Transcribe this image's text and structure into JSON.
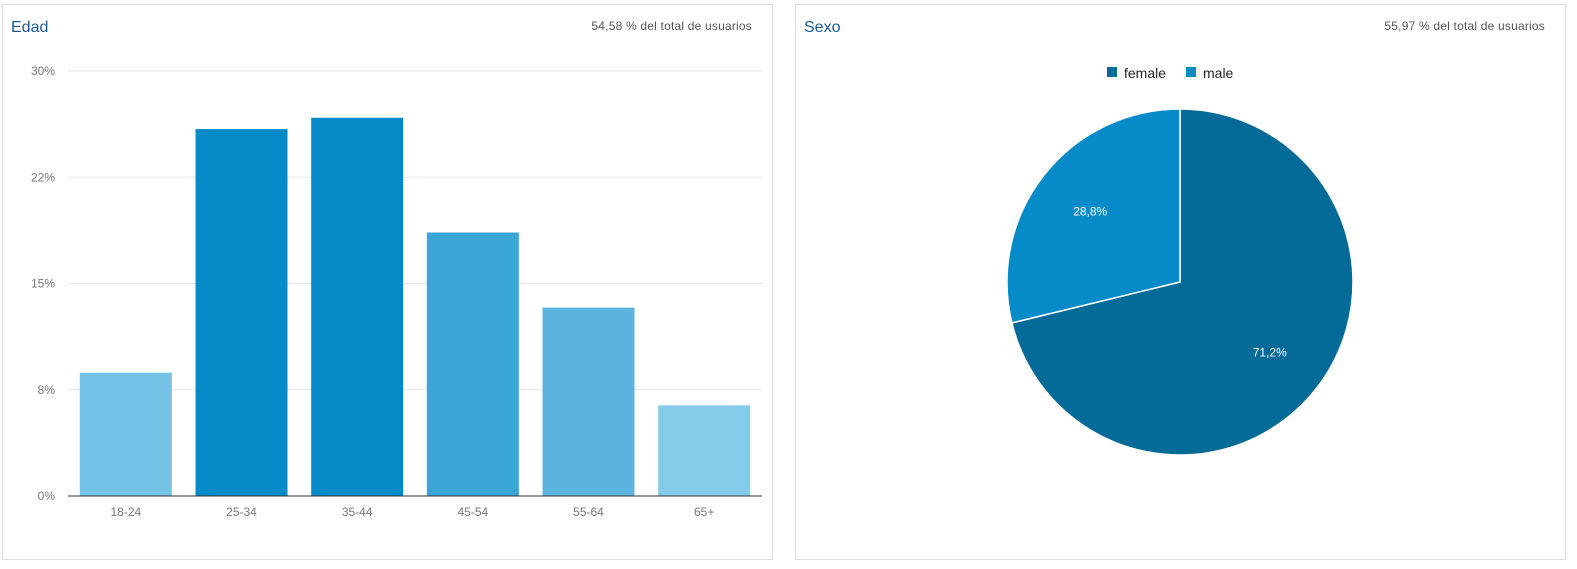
{
  "cards": {
    "age": {
      "title": "Edad",
      "share": "54,58 % del total de usuarios"
    },
    "sex": {
      "title": "Sexo",
      "share": "55,97 % del total de usuarios"
    }
  },
  "chart_data": [
    {
      "type": "bar",
      "title": "Edad",
      "categories": [
        "18-24",
        "25-34",
        "35-44",
        "45-54",
        "55-64",
        "65+"
      ],
      "values": [
        8.7,
        25.9,
        26.7,
        18.6,
        13.3,
        6.4
      ],
      "colors": [
        "#74c2e6",
        "#078bc8",
        "#058ac7",
        "#3aa6d6",
        "#5bb4de",
        "#86cbe9"
      ],
      "ylim": [
        0,
        30
      ],
      "yticks": [
        {
          "value": 0,
          "label": "0%"
        },
        {
          "value": 7.5,
          "label": "8%"
        },
        {
          "value": 15,
          "label": "15%"
        },
        {
          "value": 22.5,
          "label": "22%"
        },
        {
          "value": 30,
          "label": "30%"
        }
      ],
      "grid": true
    },
    {
      "type": "pie",
      "title": "Sexo",
      "labels": [
        "female",
        "male"
      ],
      "values": [
        71.2,
        28.8
      ],
      "value_labels": [
        "71,2%",
        "28,8%"
      ],
      "colors": [
        "#046a97",
        "#078bc8"
      ],
      "legend": "top"
    }
  ]
}
